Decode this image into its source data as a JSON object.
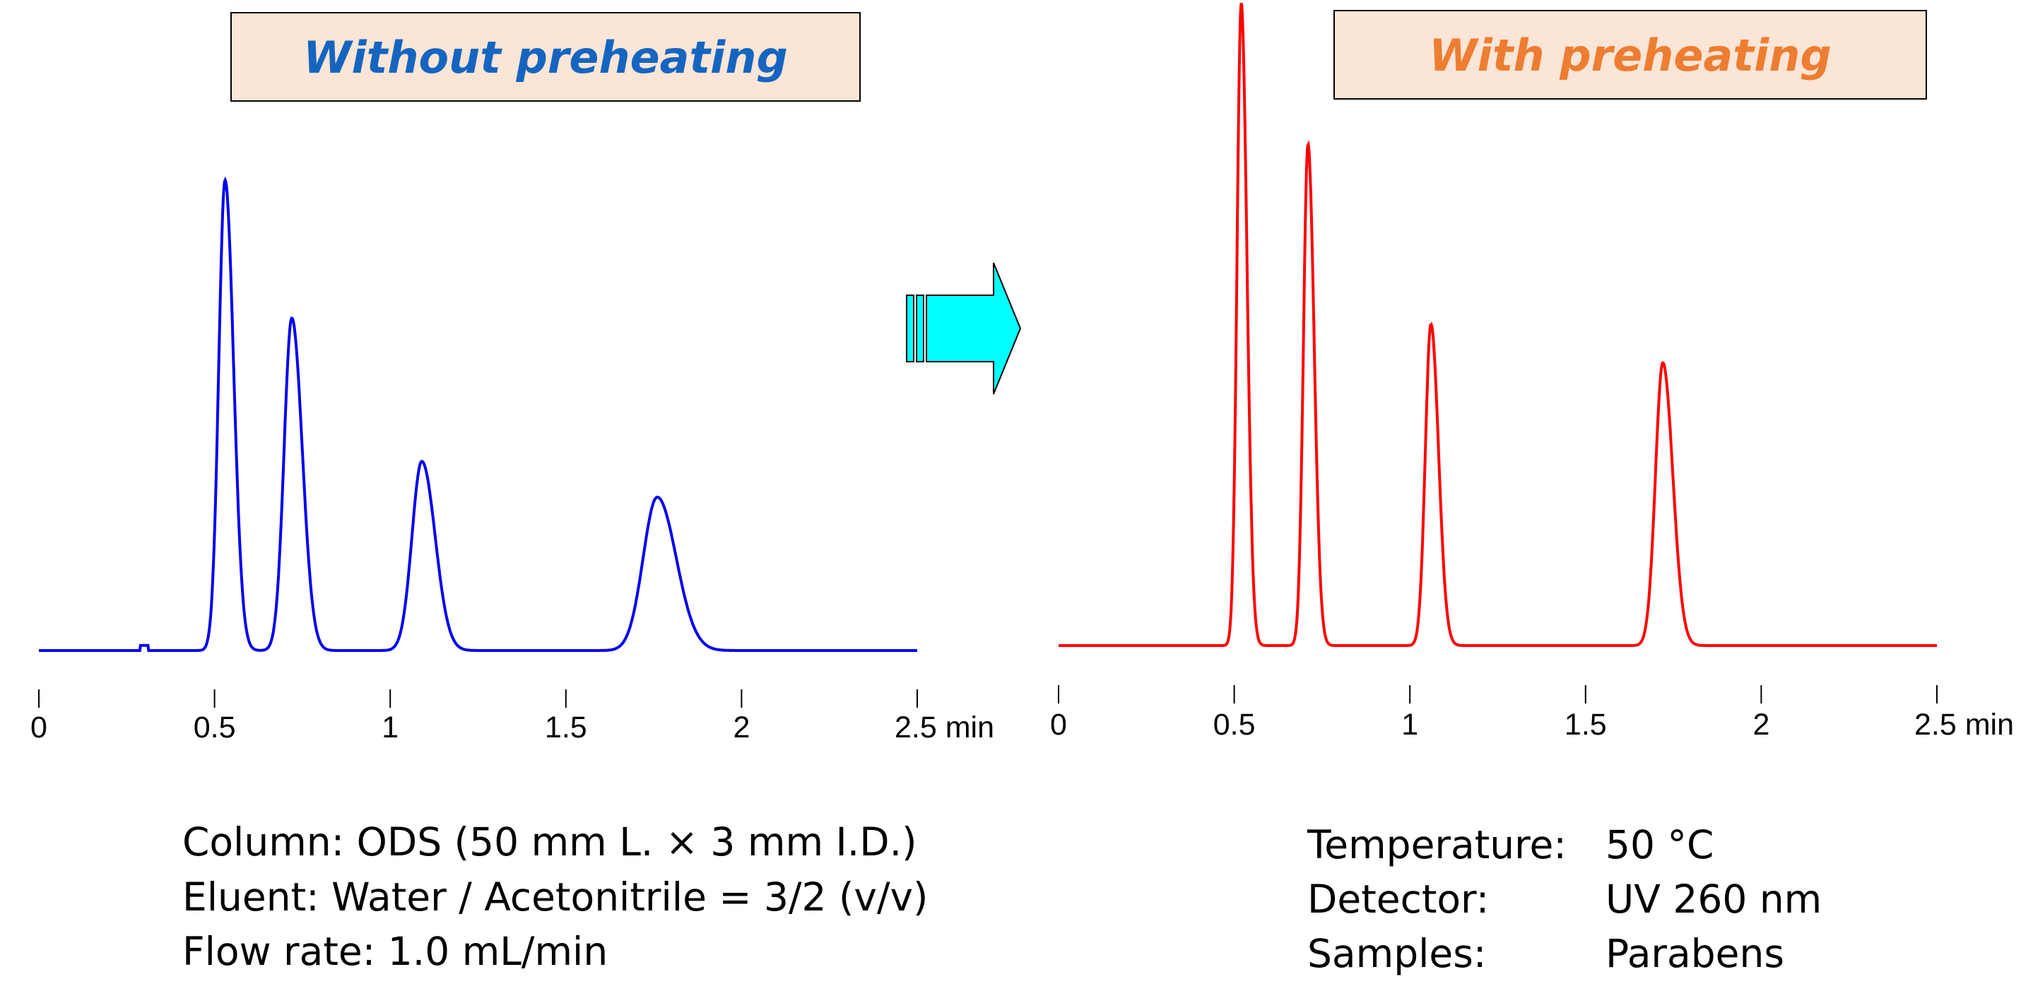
{
  "chart_data": [
    {
      "type": "line",
      "title": "Without preheating",
      "title_color": "#1565c0",
      "title_box_color": "#fbe5d6",
      "line_color": "#0000ee",
      "xlim": [
        0,
        2.5
      ],
      "x_ticks": [
        "0",
        "0.5",
        "1",
        "1.5",
        "2",
        "2.5 min"
      ],
      "x_unit": "min",
      "grid": false,
      "peaks": [
        {
          "x": 0.53,
          "height": 0.92
        },
        {
          "x": 0.72,
          "height": 0.65
        },
        {
          "x": 1.09,
          "height": 0.37
        },
        {
          "x": 1.76,
          "height": 0.3
        }
      ],
      "baseline_blip": {
        "x": 0.3,
        "height": 0.01
      }
    },
    {
      "type": "line",
      "title": "With preheating",
      "title_color": "#ed7d31",
      "title_box_color": "#fbe5d6",
      "line_color": "#ff0000",
      "xlim": [
        0,
        2.5
      ],
      "x_ticks": [
        "0",
        "0.5",
        "1",
        "1.5",
        "2",
        "2.5 min"
      ],
      "x_unit": "min",
      "grid": false,
      "peaks": [
        {
          "x": 0.52,
          "height": 1.0
        },
        {
          "x": 0.71,
          "height": 0.78
        },
        {
          "x": 1.06,
          "height": 0.5
        },
        {
          "x": 1.72,
          "height": 0.44
        }
      ]
    }
  ],
  "conditions_left": [
    "Column: ODS (50 mm L. × 3 mm I.D.)",
    "Eluent: Water / Acetonitrile = 3/2 (v/v)",
    "Flow rate: 1.0 mL/min"
  ],
  "conditions_right": [
    {
      "label": "Temperature:",
      "value": "50 °C"
    },
    {
      "label": "Detector:",
      "value": "UV 260 nm"
    },
    {
      "label": "Samples:",
      "value": "Parabens"
    }
  ],
  "arrow": {
    "fill": "#00ffff",
    "icon": "right-arrow-icon"
  }
}
